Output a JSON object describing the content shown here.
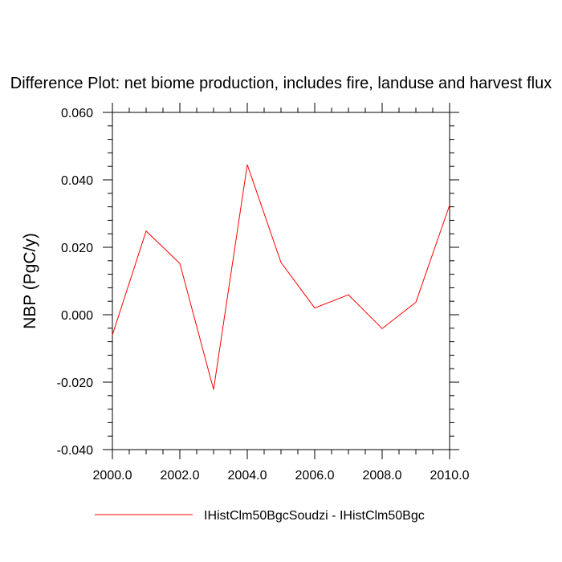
{
  "chart_data": {
    "type": "line",
    "title": "Difference Plot: net biome production, includes fire, landuse and harvest flux",
    "xlabel": "",
    "ylabel": "NBP  (PgC/y)",
    "xlim": [
      2000,
      2010
    ],
    "ylim": [
      -0.04,
      0.06
    ],
    "x_ticks": [
      2000,
      2002,
      2004,
      2006,
      2008,
      2010
    ],
    "x_tick_labels": [
      "2000.0",
      "2002.0",
      "2004.0",
      "2006.0",
      "2008.0",
      "2010.0"
    ],
    "y_ticks": [
      -0.04,
      -0.02,
      0.0,
      0.02,
      0.04,
      0.06
    ],
    "y_tick_labels": [
      "-0.040",
      "-0.020",
      "0.000",
      "0.020",
      "0.040",
      "0.060"
    ],
    "grid": false,
    "legend_position": "bottom",
    "series": [
      {
        "name": "IHistClm50BgcSoudzi - IHistClm50Bgc",
        "color": "#ff0000",
        "x": [
          2000,
          2001,
          2002,
          2003,
          2004,
          2005,
          2006,
          2007,
          2008,
          2009,
          2010
        ],
        "y": [
          -0.006,
          0.0248,
          0.0152,
          -0.0222,
          0.0445,
          0.0155,
          0.002,
          0.0059,
          -0.0041,
          0.0037,
          0.0325
        ]
      }
    ]
  }
}
